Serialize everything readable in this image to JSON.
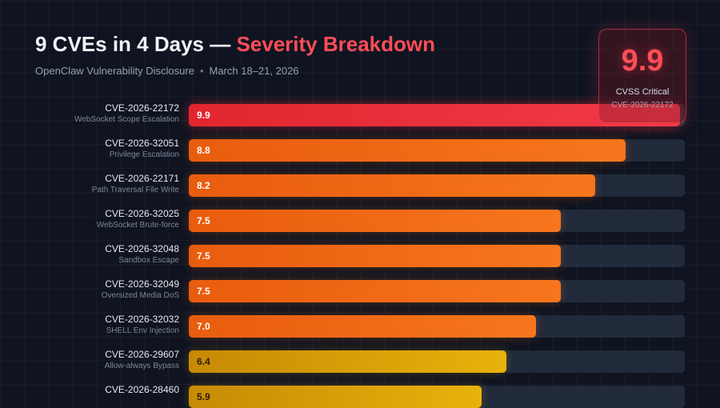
{
  "header": {
    "title_prefix": "9 CVEs in 4 Days — ",
    "title_accent": "Severity Breakdown",
    "subtitle_source": "OpenClaw Vulnerability Disclosure",
    "subtitle_separator": "•",
    "subtitle_dates": "March 18–21, 2026"
  },
  "score_card": {
    "value": "9.9",
    "caption": "CVSS Critical",
    "sub": "CVE-2026-22172"
  },
  "colors": {
    "critical": "#ff4d57",
    "high": "#f7761d",
    "medium": "#e8b20b",
    "background": "#0f1420"
  },
  "chart_data": {
    "type": "bar",
    "orientation": "horizontal",
    "xlim": [
      0,
      10
    ],
    "grid": true,
    "categories": [
      "CVE-2026-22172",
      "CVE-2026-32051",
      "CVE-2026-22171",
      "CVE-2026-32025",
      "CVE-2026-32048",
      "CVE-2026-32049",
      "CVE-2026-32032",
      "CVE-2026-29607",
      "CVE-2026-28460"
    ],
    "descriptions": [
      "WebSocket Scope Escalation",
      "Privilege Escalation",
      "Path Traversal File Write",
      "WebSocket Brute-force",
      "Sandbox Escape",
      "Oversized Media DoS",
      "SHELL Env Injection",
      "Allow-always Bypass",
      ""
    ],
    "values": [
      9.9,
      8.8,
      8.2,
      7.5,
      7.5,
      7.5,
      7.0,
      6.4,
      5.9
    ],
    "value_labels": [
      "9.9",
      "8.8",
      "8.2",
      "7.5",
      "7.5",
      "7.5",
      "7.0",
      "6.4",
      "5.9"
    ],
    "severity": [
      "critical",
      "high",
      "high",
      "high",
      "high",
      "high",
      "high",
      "medium",
      "medium"
    ]
  }
}
